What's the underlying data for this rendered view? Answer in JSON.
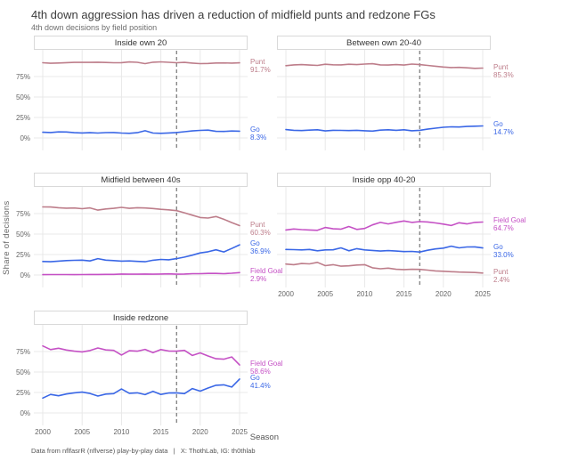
{
  "header": {
    "title": "4th down aggression has driven a reduction of midfield punts and redzone FGs",
    "subtitle": "4th down decisions by field position"
  },
  "axes": {
    "y_label": "Share of decisions",
    "x_label": "Season",
    "y_tick_values": [
      0,
      25,
      50,
      75
    ],
    "y_tick_labels": [
      "0%",
      "25%",
      "50%",
      "75%"
    ],
    "x_ticks": [
      2000,
      2005,
      2010,
      2015,
      2020,
      2025
    ]
  },
  "footer": {
    "caption": "Data from nflfasrR (nflverse) play-by-play data   |   X: ThothLab, IG: th0thlab"
  },
  "colors": {
    "punt": "#bd7d8a",
    "go": "#3a67e6",
    "field_goal": "#c551c5",
    "vline": "#7f7f7f",
    "grid": "#e8e8e8"
  },
  "chart_data": {
    "type": "line",
    "x": [
      2000,
      2001,
      2002,
      2003,
      2004,
      2005,
      2006,
      2007,
      2008,
      2009,
      2010,
      2011,
      2012,
      2013,
      2014,
      2015,
      2016,
      2017,
      2018,
      2019,
      2020,
      2021,
      2022,
      2023,
      2024,
      2025
    ],
    "vline_x": 2017,
    "ylim": [
      0,
      100
    ],
    "grid": true,
    "legend_position": "right-of-line-end-labels",
    "facets": [
      {
        "title": "Inside own 20",
        "row": 0,
        "col": 0,
        "y_ticks": true,
        "x_ticks": false,
        "series": [
          {
            "name": "Punt",
            "color_key": "punt",
            "end_label_name": "Punt",
            "end_label_value": "91.7%",
            "values": [
              91.8,
              91.2,
              91.5,
              92.0,
              92.3,
              92.4,
              92.3,
              92.5,
              92.2,
              91.8,
              92.0,
              92.8,
              92.4,
              90.8,
              92.5,
              92.9,
              92.4,
              91.8,
              92.3,
              91.4,
              90.8,
              91.0,
              91.5,
              91.6,
              91.4,
              91.7
            ]
          },
          {
            "name": "Go",
            "color_key": "go",
            "end_label_name": "Go",
            "end_label_value": "8.3%",
            "values": [
              7.0,
              6.6,
              7.4,
              7.3,
              6.4,
              6.1,
              6.4,
              6.0,
              6.5,
              6.6,
              6.0,
              5.6,
              6.4,
              8.8,
              6.0,
              5.6,
              6.1,
              6.6,
              7.6,
              8.6,
              9.2,
              9.6,
              8.0,
              7.9,
              8.5,
              8.3
            ]
          }
        ]
      },
      {
        "title": "Between own 20-40",
        "row": 0,
        "col": 1,
        "y_ticks": false,
        "x_ticks": false,
        "series": [
          {
            "name": "Punt",
            "color_key": "punt",
            "end_label_name": "Punt",
            "end_label_value": "85.3%",
            "values": [
              88.3,
              89.2,
              89.6,
              89.0,
              88.6,
              90.0,
              89.4,
              89.2,
              90.0,
              89.6,
              90.2,
              90.6,
              89.2,
              89.0,
              89.6,
              89.0,
              90.2,
              89.6,
              88.6,
              87.6,
              86.6,
              86.0,
              86.2,
              85.6,
              85.0,
              85.3
            ]
          },
          {
            "name": "Go",
            "color_key": "go",
            "end_label_name": "Go",
            "end_label_value": "14.7%",
            "values": [
              10.2,
              9.4,
              9.0,
              9.6,
              10.0,
              8.6,
              9.4,
              9.2,
              9.0,
              9.4,
              8.8,
              8.4,
              9.6,
              10.0,
              9.4,
              10.0,
              8.8,
              9.4,
              10.8,
              12.0,
              13.0,
              13.6,
              13.4,
              14.0,
              14.4,
              14.7
            ]
          }
        ]
      },
      {
        "title": "Midfield between 40s",
        "row": 1,
        "col": 0,
        "y_ticks": true,
        "x_ticks": false,
        "series": [
          {
            "name": "Punt",
            "color_key": "punt",
            "end_label_name": "Punt",
            "end_label_value": "60.3%",
            "values": [
              83.2,
              83.0,
              82.2,
              81.6,
              81.8,
              81.0,
              82.0,
              79.2,
              80.6,
              81.4,
              82.6,
              81.4,
              82.2,
              81.8,
              81.2,
              80.2,
              79.6,
              78.6,
              76.0,
              73.0,
              70.2,
              69.6,
              71.4,
              68.0,
              64.0,
              60.3
            ]
          },
          {
            "name": "Go",
            "color_key": "go",
            "end_label_name": "Go",
            "end_label_value": "36.9%",
            "values": [
              16.5,
              16.2,
              17.0,
              17.6,
              17.9,
              18.2,
              17.2,
              20.0,
              18.2,
              17.6,
              17.0,
              17.2,
              16.6,
              16.2,
              18.0,
              19.0,
              18.6,
              20.0,
              21.8,
              24.2,
              27.0,
              28.4,
              30.8,
              28.2,
              32.4,
              36.9
            ]
          },
          {
            "name": "Field Goal",
            "color_key": "field_goal",
            "end_label_name": "Field Goal",
            "end_label_value": "2.9%",
            "values": [
              0.4,
              0.5,
              0.5,
              0.5,
              0.4,
              0.5,
              0.6,
              0.6,
              0.8,
              0.8,
              1.2,
              1.0,
              1.0,
              1.2,
              1.0,
              1.2,
              1.4,
              1.0,
              1.2,
              1.6,
              1.6,
              2.0,
              2.0,
              1.6,
              2.2,
              2.9
            ]
          }
        ]
      },
      {
        "title": "Inside opp 40-20",
        "row": 1,
        "col": 1,
        "y_ticks": false,
        "x_ticks": true,
        "series": [
          {
            "name": "Field Goal",
            "color_key": "field_goal",
            "end_label_name": "Field Goal",
            "end_label_value": "64.7%",
            "values": [
              55.0,
              56.2,
              55.4,
              55.0,
              54.6,
              58.0,
              56.4,
              56.0,
              59.2,
              55.6,
              56.8,
              61.2,
              64.2,
              62.4,
              64.4,
              66.0,
              64.2,
              65.2,
              64.8,
              63.6,
              62.2,
              60.4,
              63.8,
              62.4,
              64.2,
              64.7
            ]
          },
          {
            "name": "Go",
            "color_key": "go",
            "end_label_name": "Go",
            "end_label_value": "33.0%",
            "values": [
              31.2,
              31.0,
              30.6,
              31.2,
              29.6,
              30.6,
              30.8,
              33.2,
              29.6,
              32.2,
              30.6,
              30.0,
              29.2,
              29.8,
              29.2,
              28.6,
              28.8,
              28.0,
              30.2,
              31.8,
              32.8,
              35.2,
              33.2,
              34.2,
              34.4,
              33.0
            ]
          },
          {
            "name": "Punt",
            "color_key": "punt",
            "end_label_name": "Punt",
            "end_label_value": "2.4%",
            "values": [
              13.4,
              12.6,
              14.0,
              13.6,
              15.4,
              11.4,
              12.6,
              10.8,
              11.2,
              12.2,
              12.6,
              8.8,
              7.6,
              8.4,
              7.0,
              6.6,
              7.0,
              6.8,
              6.0,
              5.0,
              4.6,
              4.0,
              3.6,
              3.4,
              3.0,
              2.4
            ]
          }
        ]
      },
      {
        "title": "Inside redzone",
        "row": 2,
        "col": 0,
        "y_ticks": true,
        "x_ticks": true,
        "series": [
          {
            "name": "Field Goal",
            "color_key": "field_goal",
            "end_label_name": "Field Goal",
            "end_label_value": "58.6%",
            "values": [
              81.8,
              77.4,
              79.0,
              76.8,
              75.4,
              74.6,
              76.2,
              79.4,
              77.0,
              76.4,
              70.8,
              76.0,
              75.4,
              77.6,
              73.6,
              77.4,
              75.6,
              75.4,
              76.4,
              70.2,
              73.4,
              69.6,
              66.2,
              65.6,
              68.4,
              58.6
            ]
          },
          {
            "name": "Go",
            "color_key": "go",
            "end_label_name": "Go",
            "end_label_value": "41.4%",
            "values": [
              18.2,
              22.6,
              21.0,
              23.2,
              24.6,
              25.4,
              23.8,
              20.6,
              23.0,
              23.6,
              29.2,
              24.0,
              24.6,
              22.4,
              26.4,
              22.6,
              24.4,
              24.6,
              23.6,
              29.8,
              26.6,
              30.4,
              33.8,
              34.4,
              31.6,
              41.4
            ]
          }
        ]
      }
    ]
  }
}
